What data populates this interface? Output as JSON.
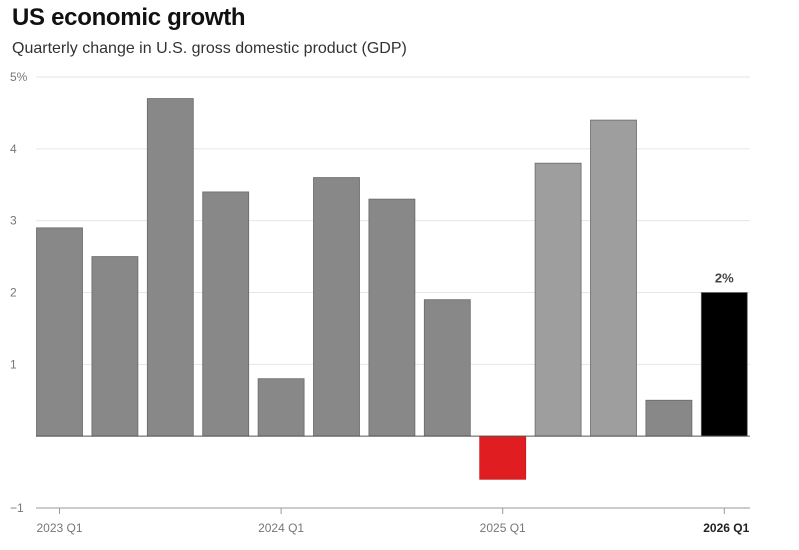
{
  "title": "US economic growth",
  "subtitle": "Quarterly change in U.S. gross domestic product (GDP)",
  "colors": {
    "historical": "#888888",
    "recent": "#9e9e9e",
    "negative": "#e01e22",
    "highlight": "#000000",
    "grid": "#e6e6e6",
    "axis": "#999999"
  },
  "chart_data": {
    "type": "bar",
    "title": "US economic growth",
    "subtitle": "Quarterly change in U.S. gross domestic product (GDP)",
    "xlabel": "",
    "ylabel": "",
    "categories": [
      "2023 Q1",
      "2023 Q2",
      "2023 Q3",
      "2023 Q4",
      "2024 Q1",
      "2024 Q2",
      "2024 Q3",
      "2024 Q4",
      "2025 Q1",
      "2025 Q2",
      "2025 Q3",
      "2025 Q4",
      "2026 Q1"
    ],
    "values": [
      2.9,
      2.5,
      4.7,
      3.4,
      0.8,
      3.6,
      3.3,
      1.9,
      -0.6,
      3.8,
      4.4,
      0.5,
      2.0
    ],
    "bar_styles": [
      "historical",
      "historical",
      "historical",
      "historical",
      "historical",
      "historical",
      "historical",
      "historical",
      "negative",
      "recent",
      "recent",
      "historical",
      "highlight"
    ],
    "ylim": [
      -1,
      5
    ],
    "yticks": [
      -1,
      0,
      1,
      2,
      3,
      4,
      5
    ],
    "ytick_labels": [
      "−1",
      "",
      "1",
      "2",
      "3",
      "4",
      "5%"
    ],
    "xtick_labels": [
      {
        "category_index": 0,
        "label": "2023 Q1",
        "bold": false
      },
      {
        "category_index": 4,
        "label": "2024 Q1",
        "bold": false
      },
      {
        "category_index": 8,
        "label": "2025 Q1",
        "bold": false
      },
      {
        "category_index": 12,
        "label": "2026 Q1",
        "bold": true
      }
    ],
    "data_labels": [
      {
        "category_index": 12,
        "label": "2%"
      }
    ],
    "grid": true
  }
}
